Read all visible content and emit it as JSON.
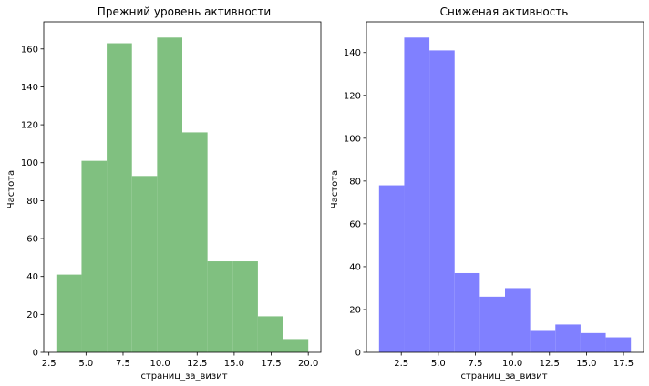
{
  "chart_data": [
    {
      "type": "bar",
      "title": "Прежний уровень активности",
      "xlabel": "страниц_за_визит",
      "ylabel": "Частота",
      "color": "#80c080",
      "bins": [
        {
          "x0": 3.0,
          "x1": 4.7,
          "count": 41
        },
        {
          "x0": 4.7,
          "x1": 6.4,
          "count": 101
        },
        {
          "x0": 6.4,
          "x1": 8.1,
          "count": 163
        },
        {
          "x0": 8.1,
          "x1": 9.8,
          "count": 93
        },
        {
          "x0": 9.8,
          "x1": 11.5,
          "count": 166
        },
        {
          "x0": 11.5,
          "x1": 13.2,
          "count": 116
        },
        {
          "x0": 13.2,
          "x1": 14.9,
          "count": 48
        },
        {
          "x0": 14.9,
          "x1": 16.6,
          "count": 48
        },
        {
          "x0": 16.6,
          "x1": 18.3,
          "count": 19
        },
        {
          "x0": 18.3,
          "x1": 20.0,
          "count": 7
        }
      ],
      "xlim": [
        2.15,
        20.85
      ],
      "ylim": [
        0,
        174.3
      ],
      "xticks": [
        {
          "value": 2.5,
          "label": "2.5"
        },
        {
          "value": 5.0,
          "label": "5.0"
        },
        {
          "value": 7.5,
          "label": "7.5"
        },
        {
          "value": 10.0,
          "label": "10.0"
        },
        {
          "value": 12.5,
          "label": "12.5"
        },
        {
          "value": 15.0,
          "label": "15.0"
        },
        {
          "value": 17.5,
          "label": "17.5"
        },
        {
          "value": 20.0,
          "label": "20.0"
        }
      ],
      "yticks": [
        {
          "value": 0,
          "label": "0"
        },
        {
          "value": 20,
          "label": "20"
        },
        {
          "value": 40,
          "label": "40"
        },
        {
          "value": 60,
          "label": "60"
        },
        {
          "value": 80,
          "label": "80"
        },
        {
          "value": 100,
          "label": "100"
        },
        {
          "value": 120,
          "label": "120"
        },
        {
          "value": 140,
          "label": "140"
        },
        {
          "value": 160,
          "label": "160"
        }
      ],
      "grid": false
    },
    {
      "type": "bar",
      "title": "Сниженая активность",
      "xlabel": "страниц_за_визит",
      "ylabel": "Частота",
      "color": "#8080ff",
      "bins": [
        {
          "x0": 1.0,
          "x1": 2.7,
          "count": 78
        },
        {
          "x0": 2.7,
          "x1": 4.4,
          "count": 147
        },
        {
          "x0": 4.4,
          "x1": 6.1,
          "count": 141
        },
        {
          "x0": 6.1,
          "x1": 7.8,
          "count": 37
        },
        {
          "x0": 7.8,
          "x1": 9.5,
          "count": 26
        },
        {
          "x0": 9.5,
          "x1": 11.2,
          "count": 30
        },
        {
          "x0": 11.2,
          "x1": 12.9,
          "count": 10
        },
        {
          "x0": 12.9,
          "x1": 14.6,
          "count": 13
        },
        {
          "x0": 14.6,
          "x1": 16.3,
          "count": 9
        },
        {
          "x0": 16.3,
          "x1": 18.0,
          "count": 7
        }
      ],
      "xlim": [
        0.15,
        18.85
      ],
      "ylim": [
        0,
        154.35
      ],
      "xticks": [
        {
          "value": 2.5,
          "label": "2.5"
        },
        {
          "value": 5.0,
          "label": "5.0"
        },
        {
          "value": 7.5,
          "label": "7.5"
        },
        {
          "value": 10.0,
          "label": "10.0"
        },
        {
          "value": 12.5,
          "label": "12.5"
        },
        {
          "value": 15.0,
          "label": "15.0"
        },
        {
          "value": 17.5,
          "label": "17.5"
        }
      ],
      "yticks": [
        {
          "value": 0,
          "label": "0"
        },
        {
          "value": 20,
          "label": "20"
        },
        {
          "value": 40,
          "label": "40"
        },
        {
          "value": 60,
          "label": "60"
        },
        {
          "value": 80,
          "label": "80"
        },
        {
          "value": 100,
          "label": "100"
        },
        {
          "value": 120,
          "label": "120"
        },
        {
          "value": 140,
          "label": "140"
        }
      ],
      "grid": false
    }
  ]
}
